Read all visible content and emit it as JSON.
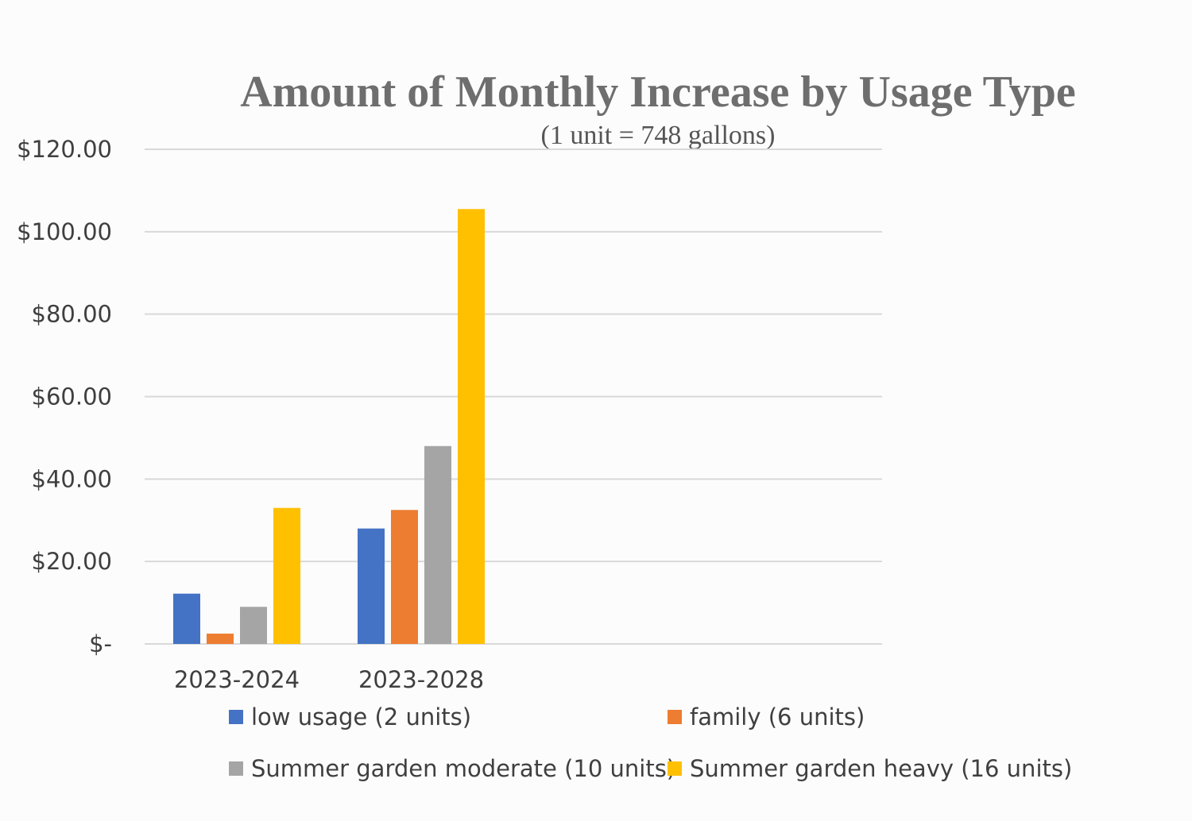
{
  "chart_data": {
    "type": "bar",
    "title": "Amount of Monthly Increase by Usage Type",
    "subtitle": "(1 unit = 748 gallons)",
    "xlabel": "",
    "ylabel": "",
    "ylim": [
      0,
      120
    ],
    "y_tick_values": [
      0,
      20,
      40,
      60,
      80,
      100,
      120
    ],
    "y_tick_labels": [
      "$-",
      "$20.00",
      "$40.00",
      "$60.00",
      "$80.00",
      "$100.00",
      "$120.00"
    ],
    "grid": true,
    "legend_position": "bottom",
    "categories": [
      "2023-2024",
      "2023-2028"
    ],
    "series": [
      {
        "name": "low usage (2 units)",
        "color": "#4472c4",
        "values": [
          12.2,
          28.0
        ]
      },
      {
        "name": "family (6 units)",
        "color": "#ed7d31",
        "values": [
          2.5,
          32.5
        ]
      },
      {
        "name": "Summer garden moderate (10 units)",
        "color": "#a5a5a5",
        "values": [
          9.0,
          48.0
        ]
      },
      {
        "name": "Summer garden heavy (16 units)",
        "color": "#ffc000",
        "values": [
          33.0,
          105.5
        ]
      }
    ]
  }
}
